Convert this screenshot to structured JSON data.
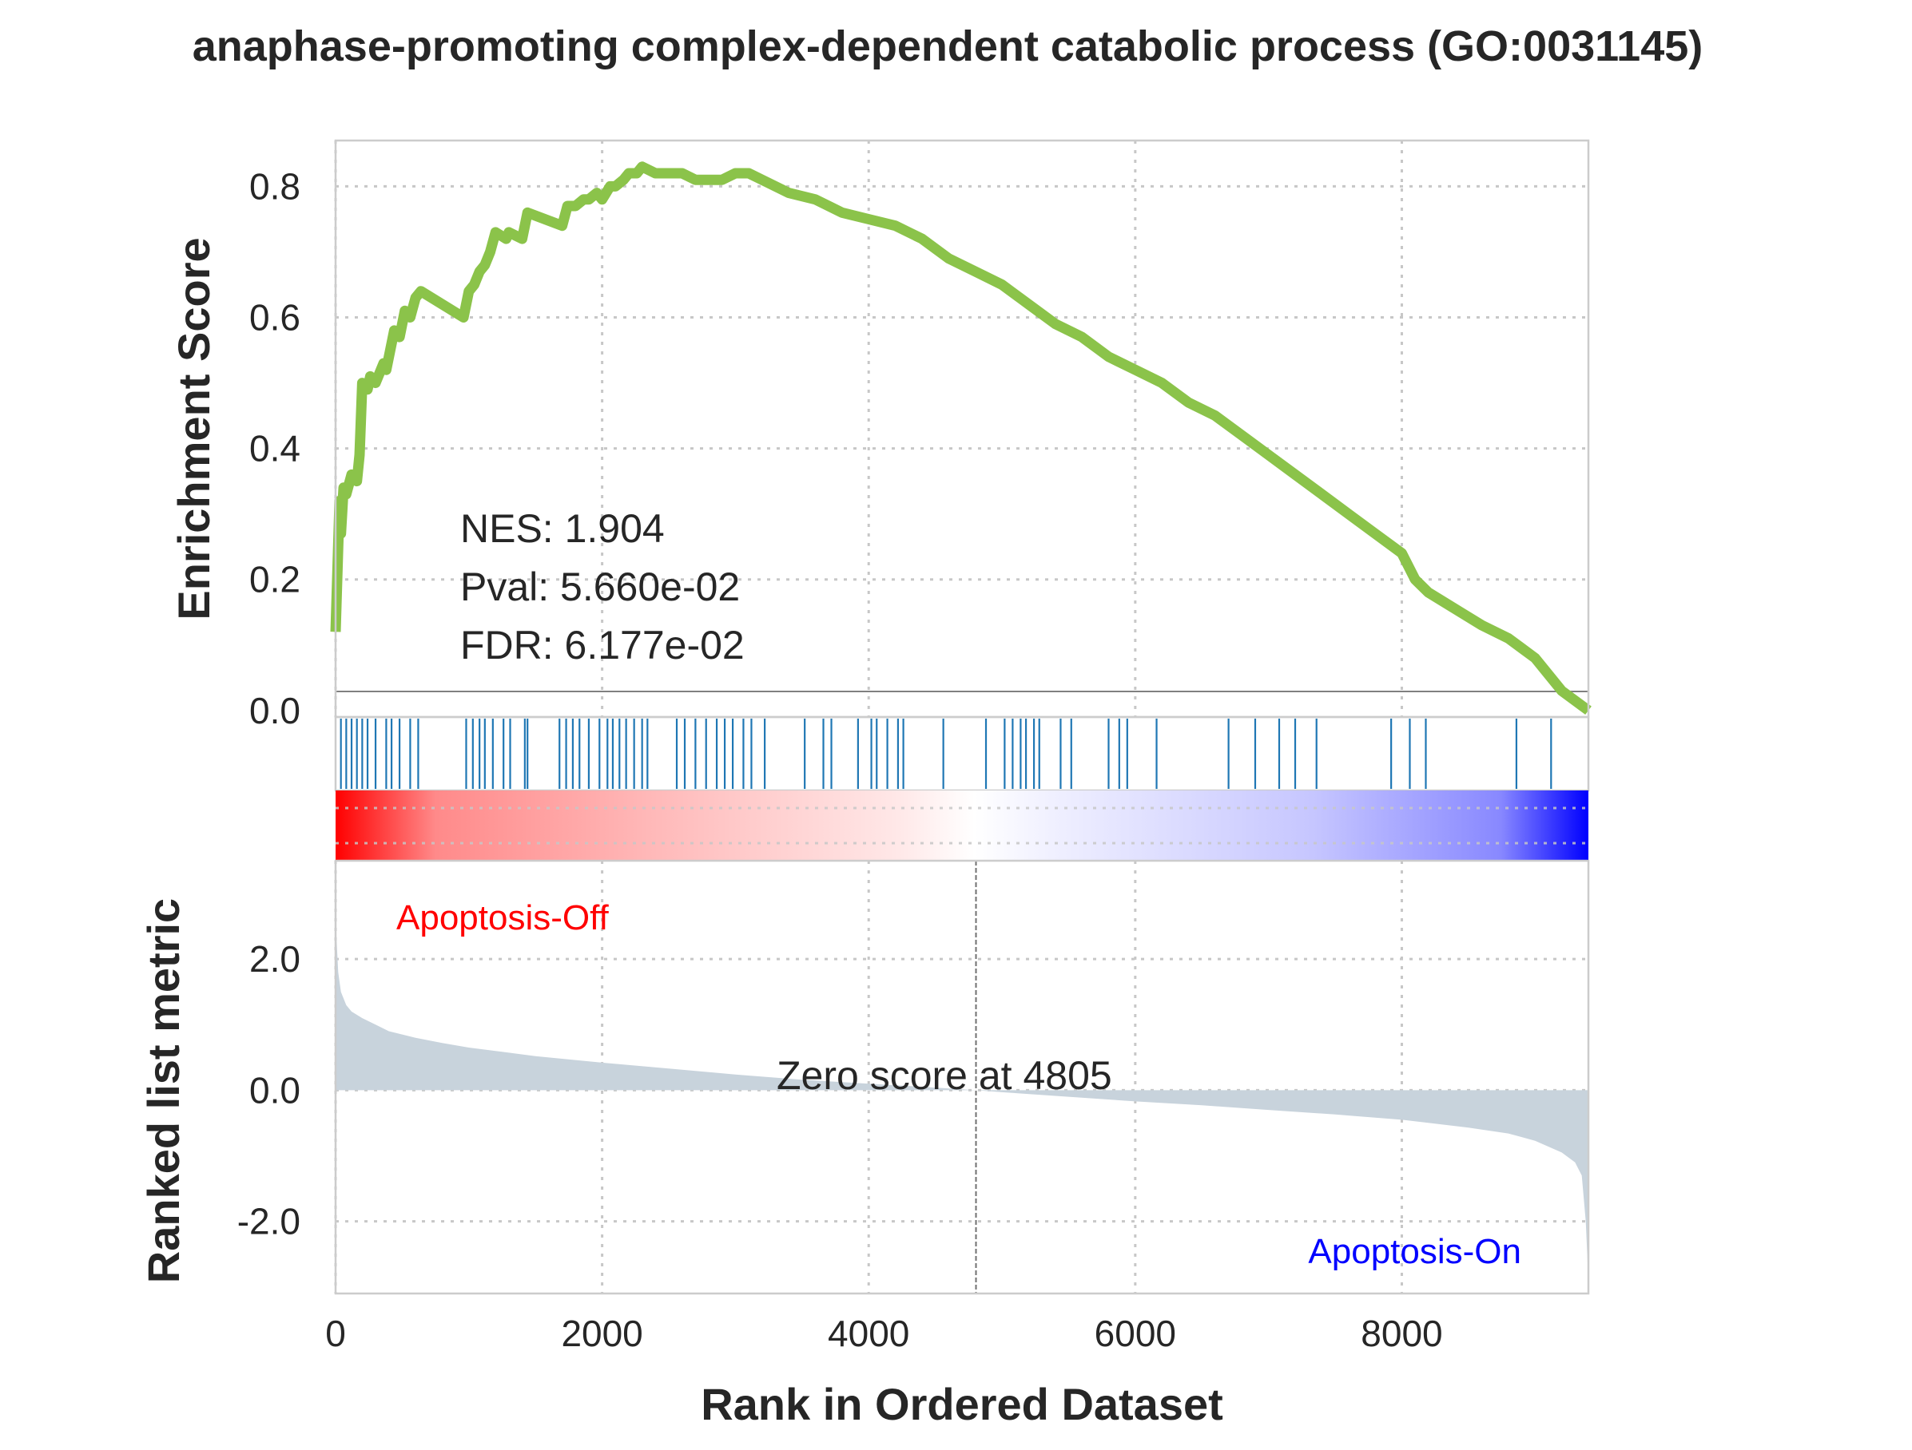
{
  "chart_data": {
    "title": "anaphase-promoting complex-dependent catabolic process (GO:0031145)",
    "xlabel": "Rank in Ordered Dataset",
    "xlim": [
      0,
      9400
    ],
    "xticks": [
      "0",
      "2000",
      "4000",
      "6000",
      "8000"
    ],
    "xtick_values": [
      0,
      2000,
      4000,
      6000,
      8000
    ],
    "panels": [
      {
        "name": "enrichment",
        "type": "line",
        "ylabel": "Enrichment Score",
        "ylim": [
          -0.01,
          0.87
        ],
        "yticks": [
          "0.0",
          "0.2",
          "0.4",
          "0.6",
          "0.8"
        ],
        "ytick_values": [
          0.0,
          0.2,
          0.4,
          0.6,
          0.8
        ],
        "line_color": "#8bc34a",
        "stats": {
          "nes": "NES: 1.904",
          "pval": "Pval: 5.660e-02",
          "fdr": "FDR: 6.177e-02"
        },
        "x": [
          0,
          30,
          40,
          60,
          80,
          120,
          160,
          180,
          200,
          240,
          260,
          300,
          360,
          380,
          440,
          480,
          520,
          560,
          600,
          640,
          960,
          1000,
          1040,
          1080,
          1120,
          1160,
          1200,
          1280,
          1300,
          1400,
          1440,
          1700,
          1740,
          1800,
          1860,
          1900,
          1960,
          2000,
          2060,
          2100,
          2160,
          2200,
          2260,
          2300,
          2400,
          2500,
          2600,
          2700,
          2800,
          2900,
          3000,
          3100,
          3200,
          3400,
          3600,
          3800,
          4000,
          4200,
          4400,
          4600,
          4800,
          5000,
          5200,
          5400,
          5600,
          5800,
          6000,
          6200,
          6400,
          6600,
          6800,
          7000,
          7200,
          7400,
          7600,
          7800,
          8000,
          8100,
          8200,
          8600,
          8800,
          9000,
          9200,
          9400
        ],
        "y": [
          0.12,
          0.32,
          0.27,
          0.34,
          0.33,
          0.36,
          0.35,
          0.39,
          0.5,
          0.49,
          0.51,
          0.5,
          0.53,
          0.52,
          0.58,
          0.57,
          0.61,
          0.6,
          0.63,
          0.64,
          0.6,
          0.64,
          0.65,
          0.67,
          0.68,
          0.7,
          0.73,
          0.72,
          0.73,
          0.72,
          0.76,
          0.74,
          0.77,
          0.77,
          0.78,
          0.78,
          0.79,
          0.78,
          0.8,
          0.8,
          0.81,
          0.82,
          0.82,
          0.83,
          0.82,
          0.82,
          0.82,
          0.81,
          0.81,
          0.81,
          0.82,
          0.82,
          0.81,
          0.79,
          0.78,
          0.76,
          0.75,
          0.74,
          0.72,
          0.69,
          0.67,
          0.65,
          0.62,
          0.59,
          0.57,
          0.54,
          0.52,
          0.5,
          0.47,
          0.45,
          0.42,
          0.39,
          0.36,
          0.33,
          0.3,
          0.27,
          0.24,
          0.2,
          0.18,
          0.13,
          0.11,
          0.08,
          0.03,
          0.0
        ]
      },
      {
        "name": "hits",
        "type": "scatter",
        "hit_color": "#1f77b4",
        "positions": [
          40,
          80,
          120,
          160,
          200,
          240,
          300,
          380,
          420,
          480,
          560,
          620,
          980,
          1030,
          1080,
          1120,
          1180,
          1260,
          1310,
          1420,
          1440,
          1680,
          1730,
          1780,
          1830,
          1900,
          1980,
          2040,
          2080,
          2130,
          2180,
          2240,
          2300,
          2340,
          2560,
          2620,
          2700,
          2780,
          2860,
          2920,
          2980,
          3060,
          3120,
          3220,
          3520,
          3660,
          3720,
          3920,
          4020,
          4060,
          4140,
          4220,
          4260,
          4560,
          4880,
          5020,
          5080,
          5140,
          5180,
          5240,
          5280,
          5440,
          5520,
          5800,
          5880,
          5940,
          6160,
          6700,
          6900,
          7080,
          7200,
          7360,
          7920,
          8060,
          8180,
          8860,
          9120
        ]
      },
      {
        "name": "ranked-metric",
        "type": "area",
        "ylabel": "Ranked list metric",
        "ylim": [
          -3.1,
          3.5
        ],
        "yticks": [
          "2.0",
          "0.0",
          "-2.0"
        ],
        "ytick_values": [
          2.0,
          0.0,
          -2.0
        ],
        "fill_color": "#c8d3dc",
        "zero_score_label": "Zero score at 4805",
        "zero_rank": 4805,
        "label_off": "Apoptosis-Off",
        "label_on": "Apoptosis-On",
        "label_off_color": "#ff0000",
        "label_on_color": "#0000ff",
        "x": [
          0,
          20,
          40,
          80,
          120,
          200,
          300,
          400,
          600,
          800,
          1000,
          1500,
          2000,
          2500,
          3000,
          3500,
          4000,
          4500,
          4805,
          5000,
          5500,
          6000,
          6500,
          7000,
          7500,
          8000,
          8500,
          8800,
          9000,
          9200,
          9300,
          9350,
          9380,
          9400
        ],
        "y": [
          2.6,
          1.8,
          1.5,
          1.3,
          1.2,
          1.1,
          1.0,
          0.9,
          0.8,
          0.72,
          0.65,
          0.52,
          0.42,
          0.33,
          0.24,
          0.16,
          0.1,
          0.04,
          0.0,
          -0.03,
          -0.1,
          -0.17,
          -0.23,
          -0.3,
          -0.37,
          -0.45,
          -0.57,
          -0.66,
          -0.77,
          -0.95,
          -1.1,
          -1.3,
          -2.0,
          -2.9
        ]
      }
    ]
  }
}
